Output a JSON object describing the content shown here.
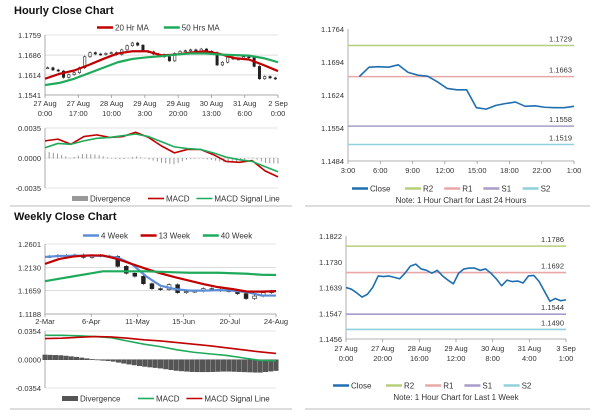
{
  "colors": {
    "red": "#c00000",
    "green": "#1eaa5a",
    "blue": "#5b8ed6",
    "close": "#1f6fb0",
    "r2": "#b7cf7a",
    "r1": "#e8a8a8",
    "s1": "#a99cc8",
    "s2": "#8fd0dc",
    "bar": "#999999",
    "barDark": "#555555"
  },
  "chart_data": [
    {
      "id": "hourly",
      "type": "candlestick",
      "title": "Hourly Close Chart",
      "ylim": [
        1.1541,
        1.1759
      ],
      "yticks": [
        "1.1759",
        "1.1686",
        "1.1614",
        "1.1541"
      ],
      "xticks": [
        [
          "27 Aug",
          "0:00"
        ],
        [
          "27 Aug",
          "17:00"
        ],
        [
          "28 Aug",
          "10:00"
        ],
        [
          "29 Aug",
          "3:00"
        ],
        [
          "29 Aug",
          "20:00"
        ],
        [
          "30 Aug",
          "13:00"
        ],
        [
          "31 Aug",
          "6:00"
        ],
        [
          "2 Sep",
          "0:00"
        ]
      ],
      "close": [
        1.164,
        1.1632,
        1.1628,
        1.1605,
        1.1615,
        1.1622,
        1.164,
        1.168,
        1.1695,
        1.169,
        1.1688,
        1.1692,
        1.1695,
        1.1688,
        1.1705,
        1.172,
        1.173,
        1.1722,
        1.17,
        1.1698,
        1.169,
        1.1688,
        1.168,
        1.1665,
        1.1692,
        1.17,
        1.1702,
        1.1705,
        1.17,
        1.1708,
        1.17,
        1.1695,
        1.165,
        1.166,
        1.1678,
        1.1672,
        1.1672,
        1.168,
        1.1678,
        1.1645,
        1.16,
        1.1608,
        1.1603,
        1.16
      ],
      "series": [
        {
          "name": "20 Hr MA",
          "color": "red",
          "values": [
            1.16,
            1.1618,
            1.163,
            1.165,
            1.1672,
            1.1692,
            1.17,
            1.17,
            1.1685,
            1.1688,
            1.1695,
            1.17,
            1.169,
            1.1675,
            1.167,
            1.165,
            1.1628
          ]
        },
        {
          "name": "50 Hrs MA",
          "color": "green",
          "values": [
            1.1577,
            1.1585,
            1.16,
            1.162,
            1.164,
            1.166,
            1.1672,
            1.1678,
            1.1682,
            1.1688,
            1.1692,
            1.1692,
            1.1688,
            1.1686,
            1.1684,
            1.1675,
            1.166
          ]
        }
      ],
      "macd": {
        "ylim": [
          -0.0035,
          0.0035
        ],
        "yticks": [
          "0.0035",
          "0.0000",
          "-0.0035"
        ],
        "series": [
          {
            "name": "MACD",
            "color": "red",
            "values": [
              0.002,
              0.0022,
              0.0016,
              0.0025,
              0.0027,
              0.0024,
              0.0025,
              0.003,
              0.0024,
              0.0014,
              0.0006,
              0.001,
              0.001,
              0.0004,
              -0.0004,
              -0.0005,
              -0.0003,
              -0.0015,
              -0.0022
            ]
          },
          {
            "name": "MACD Signal Line",
            "color": "green",
            "values": [
              0.0012,
              0.0017,
              0.0016,
              0.002,
              0.0023,
              0.0024,
              0.0026,
              0.0028,
              0.0025,
              0.0019,
              0.0013,
              0.0011,
              0.001,
              0.0006,
              0.0001,
              -0.0002,
              -0.0004,
              -0.001,
              -0.0016
            ]
          }
        ],
        "divergenceName": "Divergence"
      }
    },
    {
      "id": "hourly24",
      "type": "line",
      "title": "",
      "ylim": [
        1.1484,
        1.1764
      ],
      "yticks": [
        "1.1764",
        "1.1694",
        "1.1624",
        "1.1554",
        "1.1484"
      ],
      "xticks": [
        "3:00",
        "6:00",
        "9:00",
        "12:00",
        "15:00",
        "18:00",
        "22:00",
        "1:00"
      ],
      "series": [
        {
          "name": "Close",
          "color": "close",
          "values": [
            1.1663,
            1.1683,
            1.1684,
            1.1683,
            1.1688,
            1.1672,
            1.1666,
            1.1664,
            1.1652,
            1.1638,
            1.1635,
            1.1635,
            1.1597,
            1.1594,
            1.1602,
            1.1606,
            1.1609,
            1.16,
            1.1601,
            1.1598,
            1.1597,
            1.1597,
            1.16
          ]
        }
      ],
      "levels": [
        {
          "name": "R2",
          "color": "r2",
          "value": 1.1729,
          "label": "1.1729"
        },
        {
          "name": "R1",
          "color": "r1",
          "value": 1.1663,
          "label": "1.1663"
        },
        {
          "name": "S1",
          "color": "s1",
          "value": 1.1558,
          "label": "1.1558"
        },
        {
          "name": "S2",
          "color": "s2",
          "value": 1.1519,
          "label": "1.1519"
        }
      ],
      "note": "Note: 1 Hour Chart for Last 24 Hours"
    },
    {
      "id": "weekly",
      "type": "candlestick",
      "title": "Weekly Close Chart",
      "ylim": [
        1.1188,
        1.2601
      ],
      "yticks": [
        "1.2601",
        "1.2130",
        "1.1659",
        "1.1188"
      ],
      "xticks": [
        [
          "2-Mar"
        ],
        [
          "6-Apr"
        ],
        [
          "11-May"
        ],
        [
          "15-Jun"
        ],
        [
          "20-Jul"
        ],
        [
          "24-Aug"
        ]
      ],
      "close": [
        1.235,
        1.237,
        1.236,
        1.238,
        1.233,
        1.237,
        1.236,
        1.235,
        1.215,
        1.201,
        1.195,
        1.18,
        1.17,
        1.168,
        1.178,
        1.162,
        1.164,
        1.165,
        1.17,
        1.168,
        1.166,
        1.165,
        1.16,
        1.15,
        1.155,
        1.162,
        1.165
      ],
      "series": [
        {
          "name": "4 Week",
          "color": "blue",
          "values": [
            1.234,
            1.236,
            1.2365,
            1.2365,
            1.236,
            1.233,
            1.22,
            1.195,
            1.176,
            1.169,
            1.166,
            1.166,
            1.167,
            1.166,
            1.163,
            1.156,
            1.156
          ]
        },
        {
          "name": "13 Week",
          "color": "red",
          "values": [
            1.22,
            1.23,
            1.235,
            1.237,
            1.237,
            1.23,
            1.22,
            1.21,
            1.201,
            1.193,
            1.186,
            1.179,
            1.173,
            1.169,
            1.164,
            1.164,
            1.165
          ]
        },
        {
          "name": "40 Week",
          "color": "green",
          "values": [
            1.185,
            1.19,
            1.195,
            1.2,
            1.205,
            1.205,
            1.205,
            1.205,
            1.204,
            1.203,
            1.202,
            1.202,
            1.202,
            1.201,
            1.2,
            1.198,
            1.1975
          ]
        }
      ],
      "macd": {
        "ylim": [
          -0.0354,
          0.0354
        ],
        "yticks": [
          "0.0354",
          "0.0000",
          "-0.0354"
        ],
        "series": [
          {
            "name": "MACD",
            "color": "green",
            "values": [
              0.03,
              0.03,
              0.0295,
              0.0285,
              0.027,
              0.023,
              0.019,
              0.016,
              0.012,
              0.009,
              0.007,
              0.005,
              0.002,
              -0.001,
              -0.0015
            ]
          },
          {
            "name": "MACD Signal Line",
            "color": "red",
            "values": [
              0.026,
              0.0265,
              0.0275,
              0.0285,
              0.028,
              0.0265,
              0.0245,
              0.023,
              0.021,
              0.019,
              0.017,
              0.0145,
              0.012,
              0.0095,
              0.0075
            ]
          }
        ],
        "divergenceName": "Divergence"
      }
    },
    {
      "id": "weekly1h",
      "type": "line",
      "title": "",
      "ylim": [
        1.1456,
        1.1822
      ],
      "yticks": [
        "1.1822",
        "1.1730",
        "1.1639",
        "1.1547",
        "1.1456"
      ],
      "xticks": [
        [
          "27 Aug",
          "0:00"
        ],
        [
          "27 Aug",
          "20:00"
        ],
        [
          "28 Aug",
          "16:00"
        ],
        [
          "29 Aug",
          "12:00"
        ],
        [
          "30 Aug",
          "8:00"
        ],
        [
          "31 Aug",
          "4:00"
        ],
        [
          "3 Sep",
          "1:00"
        ]
      ],
      "series": [
        {
          "name": "Close",
          "color": "close",
          "values": [
            1.1639,
            1.1633,
            1.162,
            1.1605,
            1.1615,
            1.164,
            1.168,
            1.1678,
            1.168,
            1.1675,
            1.167,
            1.169,
            1.1715,
            1.1722,
            1.1705,
            1.17,
            1.169,
            1.17,
            1.168,
            1.1665,
            1.1652,
            1.169,
            1.1705,
            1.1708,
            1.1708,
            1.17,
            1.1705,
            1.169,
            1.167,
            1.1645,
            1.1665,
            1.166,
            1.1662,
            1.1655,
            1.168,
            1.1682,
            1.166,
            1.1625,
            1.159,
            1.16,
            1.1592,
            1.1595
          ]
        }
      ],
      "levels": [
        {
          "name": "R2",
          "color": "r2",
          "value": 1.1786,
          "label": "1.1786"
        },
        {
          "name": "R1",
          "color": "r1",
          "value": 1.1692,
          "label": "1.1692"
        },
        {
          "name": "S1",
          "color": "s1",
          "value": 1.1544,
          "label": "1.1544"
        },
        {
          "name": "S2",
          "color": "s2",
          "value": 1.149,
          "label": "1.1490"
        }
      ],
      "note": "Note: 1 Hour Chart for Last 1 Week"
    }
  ]
}
